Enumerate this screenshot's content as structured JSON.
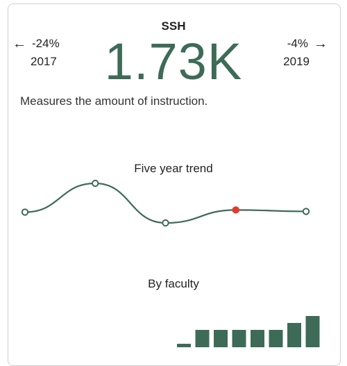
{
  "metric": {
    "label": "SSH",
    "value": "1.73K",
    "description": "Measures the amount of instruction."
  },
  "prev": {
    "change": "-24%",
    "year": "2017",
    "icon": "arrow-left-icon"
  },
  "next": {
    "change": "-4%",
    "year": "2019",
    "icon": "arrow-right-icon"
  },
  "colors": {
    "accent": "#3d6b57",
    "highlight": "#e53a2e"
  },
  "trend": {
    "title": "Five year trend",
    "chart_data": {
      "type": "line",
      "points": [
        {
          "value": 0.45,
          "highlight": false
        },
        {
          "value": 0.85,
          "highlight": false
        },
        {
          "value": 0.3,
          "highlight": false
        },
        {
          "value": 0.48,
          "highlight": true
        },
        {
          "value": 0.46,
          "highlight": false
        }
      ]
    }
  },
  "faculty": {
    "title": "By faculty",
    "chart_data": {
      "type": "bar",
      "values": [
        0.5,
        2.5,
        2.5,
        2.5,
        2.5,
        2.5,
        3.5,
        4.5
      ],
      "ylim": [
        0,
        4.5
      ]
    }
  }
}
